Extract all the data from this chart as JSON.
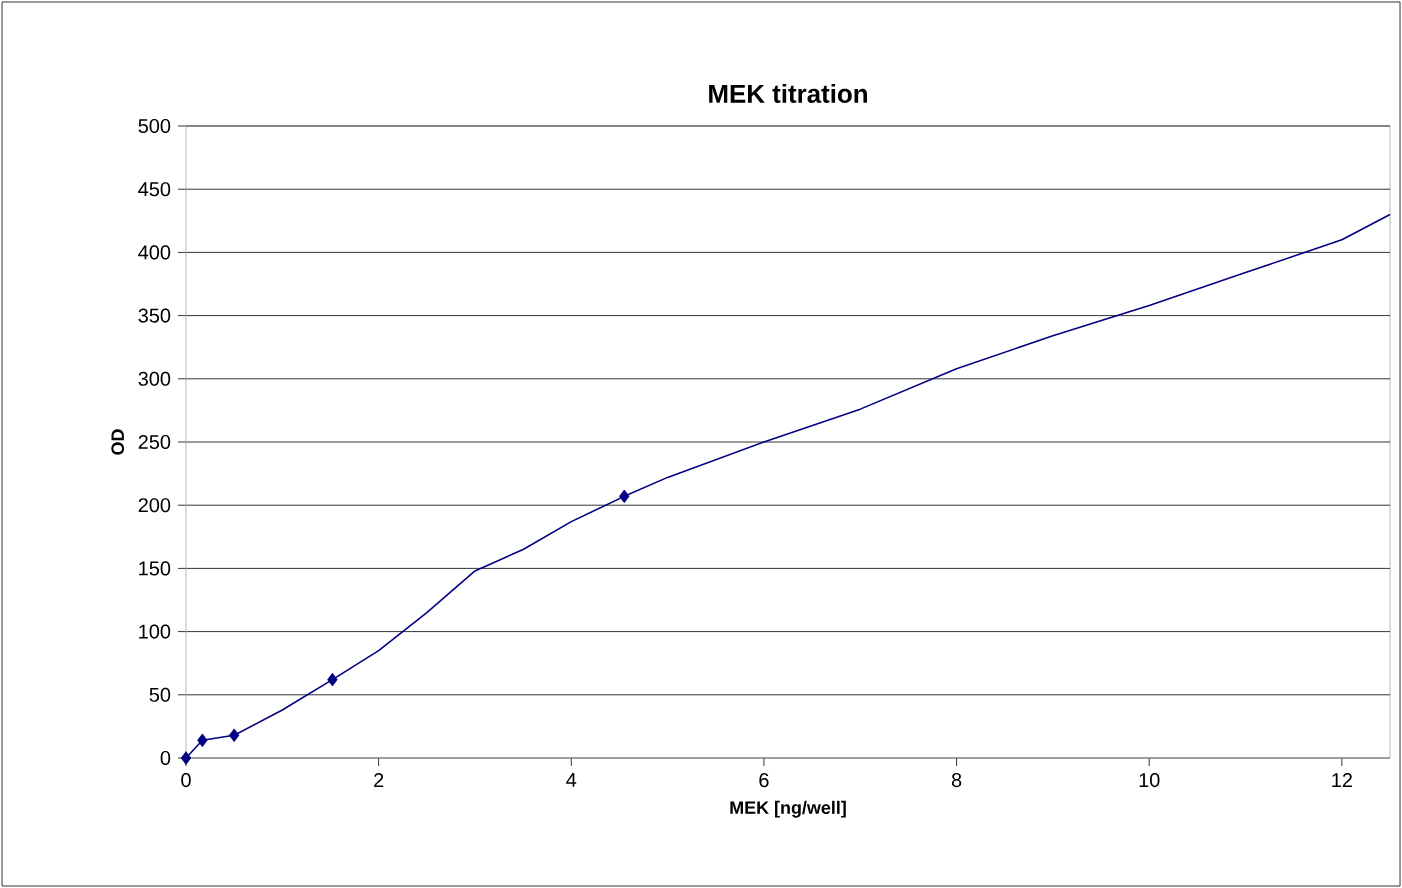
{
  "chart_data": {
    "type": "scatter",
    "title": "MEK titration",
    "xlabel": "MEK [ng/well]",
    "ylabel": "OD",
    "xlim": [
      0,
      12.5
    ],
    "ylim": [
      0,
      500
    ],
    "xticks": [
      0,
      2,
      4,
      6,
      8,
      10,
      12
    ],
    "yticks": [
      0,
      50,
      100,
      150,
      200,
      250,
      300,
      350,
      400,
      450,
      500
    ],
    "grid": "y",
    "marker": "diamond",
    "series": [
      {
        "color": "#000080",
        "x": [
          0,
          0.17,
          0.5,
          1.52,
          4.55
        ],
        "values": [
          0,
          14,
          18,
          62,
          207
        ]
      },
      {
        "type": "line",
        "color": "#000080",
        "marker": "none",
        "x": [
          0,
          0.17,
          0.5,
          1,
          1.52,
          2,
          2.5,
          3,
          3.5,
          4,
          4.55,
          5,
          6,
          7,
          8,
          9,
          10,
          11,
          12,
          12.5
        ],
        "values": [
          0,
          14,
          18,
          38,
          62,
          85,
          115,
          148,
          165,
          187,
          207,
          222,
          250,
          276,
          308,
          334,
          358,
          384,
          410,
          430
        ]
      }
    ]
  }
}
